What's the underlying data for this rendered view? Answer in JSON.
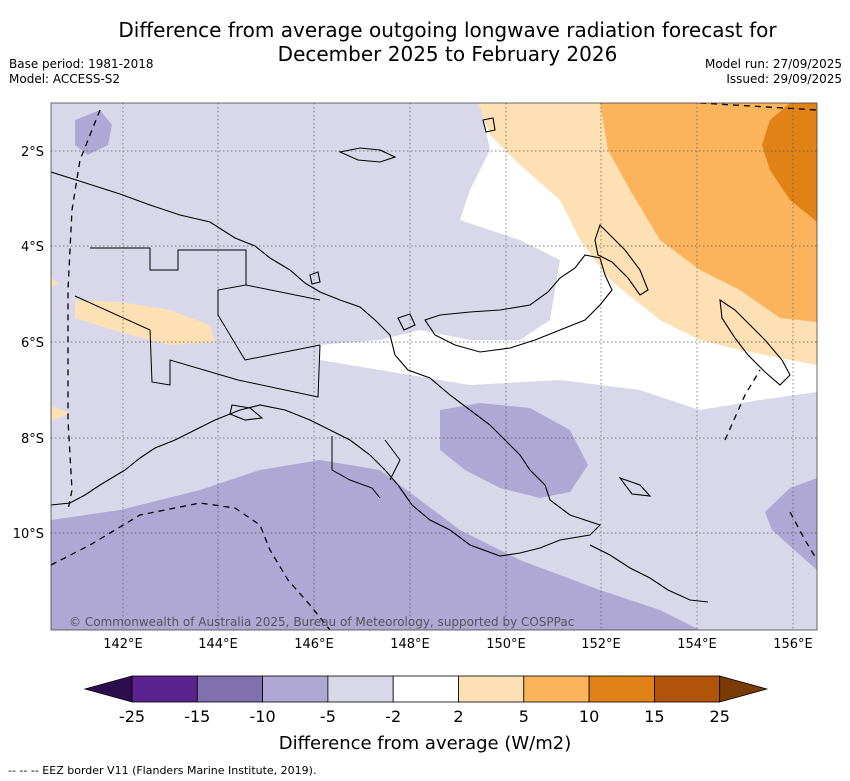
{
  "title_line1": "Difference from average outgoing longwave radiation forecast for",
  "title_line2": "December 2025 to February 2026",
  "base_period": "Base period: 1981-2018",
  "model": "Model: ACCESS-S2",
  "model_run": "Model run: 27/09/2025",
  "issued": "Issued: 29/09/2025",
  "lat_labels": [
    "2°S",
    "4°S",
    "6°S",
    "8°S",
    "10°S"
  ],
  "lon_labels": [
    "142°E",
    "144°E",
    "146°E",
    "148°E",
    "150°E",
    "152°E",
    "154°E",
    "156°E"
  ],
  "copyright": "© Commonwealth of Australia 2025, Bureau of Meteorology, supported by COSPPac",
  "colorbar": {
    "label": "Difference from average (W/m2)",
    "ticks": [
      "-25",
      "-15",
      "-10",
      "-5",
      "-2",
      "2",
      "5",
      "10",
      "15",
      "25"
    ],
    "colors": [
      "#5b2390",
      "#8070ad",
      "#b0a8d4",
      "#d9d8ea",
      "#ffffff",
      "#fde0b4",
      "#fbb35c",
      "#e08216",
      "#b05409"
    ],
    "under_color": "#2e0d4f",
    "over_color": "#7a3b06"
  },
  "footer": "--  --  -- EEZ border V11 (Flanders Marine Institute, 2019)."
}
